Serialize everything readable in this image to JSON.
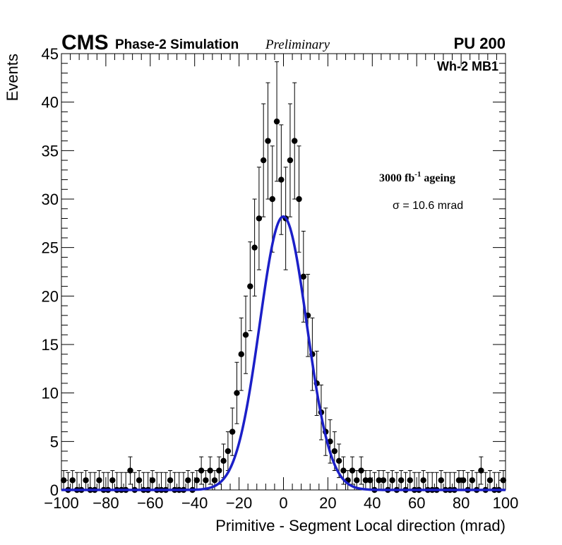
{
  "header": {
    "experiment": "CMS",
    "subtitle": "Phase-2 Simulation",
    "status": "Preliminary",
    "pileup": "PU 200"
  },
  "annotations": {
    "chamber": "Wh-2 MB1",
    "ageing_prefix": "3000 fb",
    "ageing_exponent": "-1",
    "ageing_suffix": " ageing",
    "sigma_text": "σ = 10.6 mrad"
  },
  "chart_data": {
    "type": "scatter",
    "title": "",
    "xlabel": "Primitive - Segment Local direction (mrad)",
    "ylabel": "Events",
    "xlim": [
      -100,
      100
    ],
    "ylim": [
      0,
      45
    ],
    "xticks": [
      -100,
      -80,
      -60,
      -40,
      -20,
      0,
      20,
      40,
      60,
      80,
      100
    ],
    "yticks": [
      0,
      5,
      10,
      15,
      20,
      25,
      30,
      35,
      40,
      45
    ],
    "xtick_labels": [
      "−100",
      "−80",
      "−60",
      "−40",
      "−20",
      "0",
      "20",
      "40",
      "60",
      "80",
      "100"
    ],
    "ytick_labels": [
      "0",
      "5",
      "10",
      "15",
      "20",
      "25",
      "30",
      "35",
      "40",
      "45"
    ],
    "grid": false,
    "series": [
      {
        "name": "Data",
        "style": "points with Poisson error bars",
        "color": "#000000",
        "x": [
          -99,
          -97,
          -95,
          -93,
          -91,
          -89,
          -87,
          -85,
          -83,
          -81,
          -79,
          -77,
          -75,
          -73,
          -71,
          -69,
          -67,
          -65,
          -63,
          -61,
          -59,
          -57,
          -55,
          -53,
          -51,
          -49,
          -47,
          -45,
          -43,
          -41,
          -39,
          -37,
          -35,
          -33,
          -31,
          -29,
          -27,
          -25,
          -23,
          -21,
          -19,
          -17,
          -15,
          -13,
          -11,
          -9,
          -7,
          -5,
          -3,
          -1,
          1,
          3,
          5,
          7,
          9,
          11,
          13,
          15,
          17,
          19,
          21,
          23,
          25,
          27,
          29,
          31,
          33,
          35,
          37,
          39,
          41,
          43,
          45,
          47,
          49,
          51,
          53,
          55,
          57,
          59,
          61,
          63,
          65,
          67,
          69,
          71,
          73,
          75,
          77,
          79,
          81,
          83,
          85,
          87,
          89,
          91,
          93,
          95,
          97,
          99
        ],
        "y": [
          1,
          0,
          1,
          0,
          0,
          1,
          0,
          0,
          1,
          0,
          0,
          1,
          0,
          0,
          0,
          2,
          0,
          1,
          0,
          0,
          1,
          0,
          0,
          0,
          1,
          0,
          0,
          0,
          1,
          0,
          1,
          2,
          1,
          2,
          1,
          2,
          3,
          4,
          6,
          10,
          14,
          16,
          21,
          25,
          28,
          34,
          36,
          30,
          38,
          32,
          28,
          34,
          36,
          30,
          22,
          18,
          14,
          11,
          8,
          6,
          5,
          4,
          3,
          2,
          1,
          2,
          1,
          2,
          1,
          1,
          0,
          1,
          1,
          0,
          1,
          0,
          1,
          0,
          1,
          0,
          0,
          1,
          0,
          0,
          0,
          1,
          0,
          0,
          0,
          1,
          1,
          0,
          1,
          0,
          2,
          0,
          1,
          0,
          0,
          1
        ]
      }
    ],
    "fit": {
      "name": "Gaussian fit",
      "color": "#1b1fc8",
      "amplitude": 28.2,
      "mean": -0.1,
      "sigma": 10.6
    }
  }
}
